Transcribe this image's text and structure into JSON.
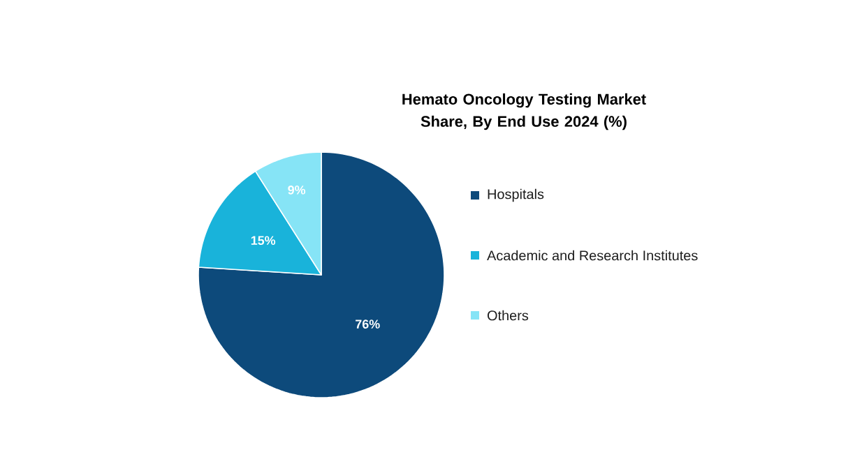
{
  "chart_data": {
    "type": "pie",
    "title": "Hemato Oncology Testing Market Share, By End Use 2024 (%)",
    "categories": [
      "Hospitals",
      "Academic and Research Institutes",
      "Others"
    ],
    "values": [
      76,
      15,
      9
    ],
    "colors": [
      "#0d4a7b",
      "#19b3da",
      "#86e4f6"
    ],
    "value_labels": [
      "76%",
      "15%",
      "9%"
    ],
    "legend": "right"
  }
}
